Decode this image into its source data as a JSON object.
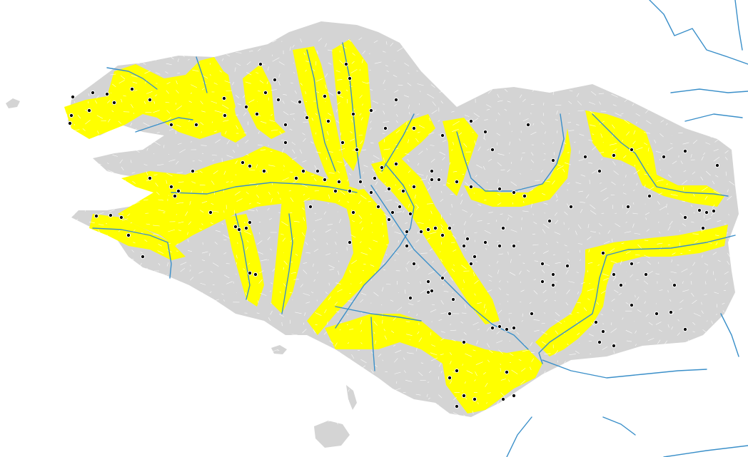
{
  "map": {
    "colors": {
      "background": "#ffffff",
      "land": "#d4d4d4",
      "commune_border": "#ffffff",
      "river_corridor": "#ffff00",
      "river": "#3a8fc9",
      "point": "#000000"
    },
    "layers": {
      "communes": "commune-polygons",
      "corridors": "river-corridor-communes",
      "rivers": "river-network",
      "points": "observation-points"
    }
  }
}
